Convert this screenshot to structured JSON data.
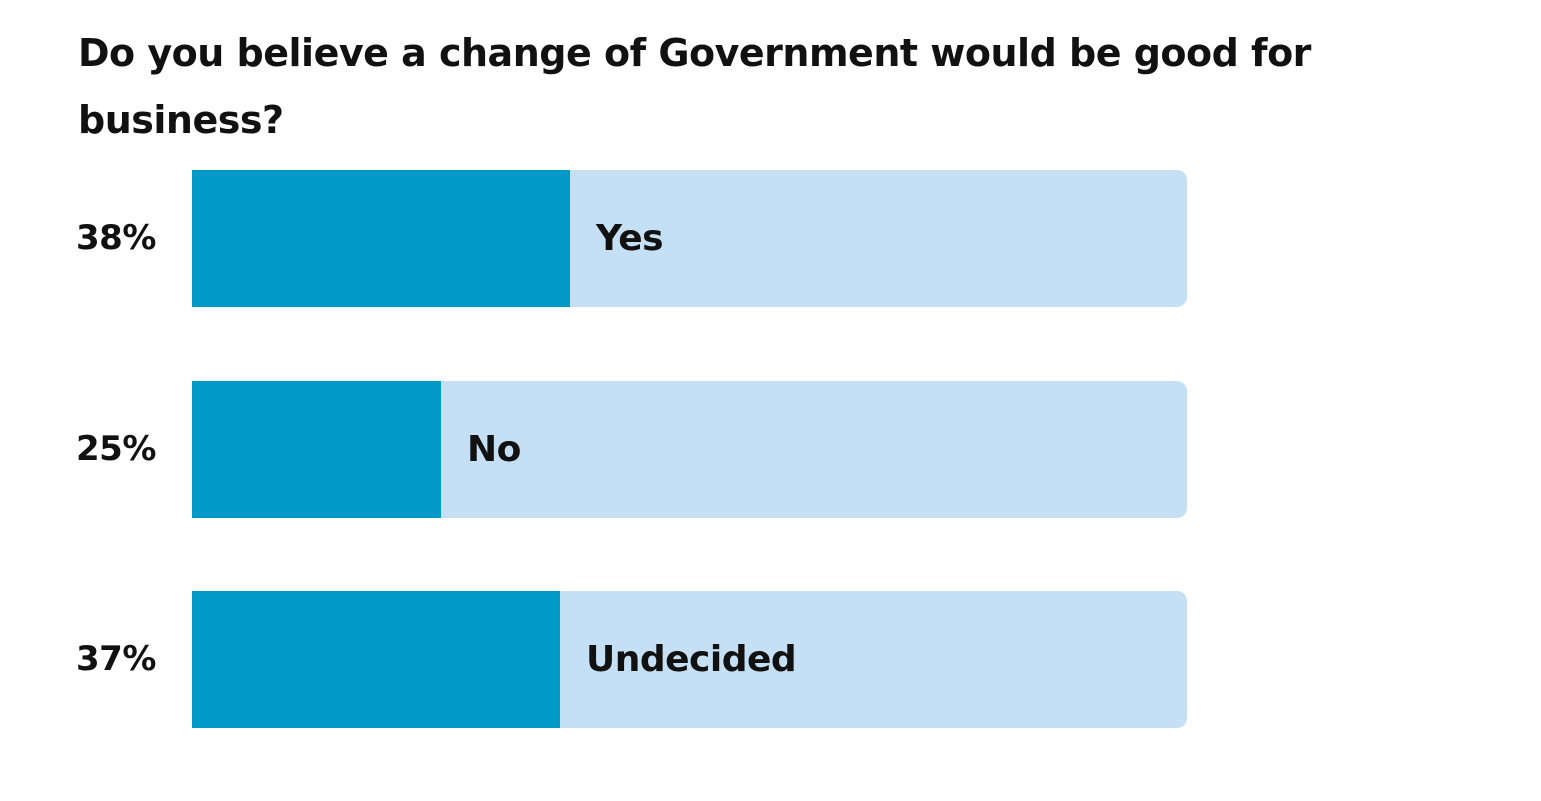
{
  "chart_data": {
    "type": "bar",
    "orientation": "horizontal",
    "title": "Do you believe a change of Government would be good for business?",
    "categories": [
      "Yes",
      "No",
      "Undecided"
    ],
    "values": [
      38,
      25,
      37
    ],
    "value_labels": [
      "38%",
      "25%",
      "37%"
    ],
    "unit": "%",
    "xlim": [
      0,
      100
    ],
    "grid": false,
    "legend": "none",
    "colors": {
      "fill": "#0099c8",
      "track": "#c5e0f5",
      "text": "#111111"
    }
  }
}
